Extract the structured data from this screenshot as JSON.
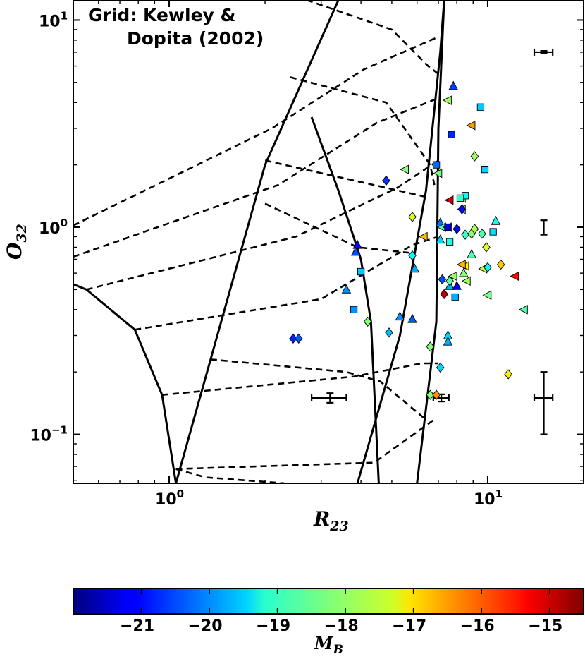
{
  "chart_data": {
    "type": "scatter",
    "title": "",
    "annotation": [
      "Grid: Kewley &",
      "Dopita (2002)"
    ],
    "xlabel": {
      "main": "R",
      "sub": "23"
    },
    "ylabel": {
      "main": "O",
      "sub": "32"
    },
    "xscale": "log",
    "yscale": "log",
    "xlim": [
      0.5,
      20
    ],
    "ylim": [
      0.058,
      12.5
    ],
    "xticks": [
      {
        "value": 1,
        "base": "10",
        "exp": "0"
      },
      {
        "value": 10,
        "base": "10",
        "exp": "1"
      }
    ],
    "yticks": [
      {
        "value": 0.1,
        "base": "10",
        "exp": "−1"
      },
      {
        "value": 1,
        "base": "10",
        "exp": "0"
      },
      {
        "value": 10,
        "base": "10",
        "exp": "1"
      }
    ],
    "grid": false,
    "colorbar": {
      "label": {
        "main": "M",
        "sub": "B"
      },
      "vmin": -22,
      "vmax": -14.5,
      "colormap": "jet",
      "ticks": [
        "−21",
        "−20",
        "−19",
        "−18",
        "−17",
        "−16",
        "−15"
      ],
      "tick_values": [
        -21,
        -20,
        -19,
        -18,
        -17,
        -16,
        -15
      ]
    },
    "model_grid": {
      "solid": [
        [
          [
            0.5,
            0.53
          ],
          [
            0.55,
            0.5
          ],
          [
            0.78,
            0.32
          ],
          [
            0.95,
            0.155
          ],
          [
            1.05,
            0.058
          ]
        ],
        [
          [
            1.05,
            0.058
          ],
          [
            2.0,
            2.0
          ],
          [
            3.4,
            12.5
          ]
        ],
        [
          [
            2.8,
            3.4
          ],
          [
            3.4,
            1.5
          ],
          [
            4.0,
            0.7
          ],
          [
            4.3,
            0.35
          ],
          [
            4.55,
            0.058
          ]
        ],
        [
          [
            3.9,
            0.058
          ],
          [
            5.3,
            0.3
          ],
          [
            6.4,
            1.5
          ],
          [
            7.1,
            7.0
          ],
          [
            7.3,
            12.5
          ]
        ],
        [
          [
            6.0,
            0.058
          ],
          [
            6.9,
            0.35
          ],
          [
            7.0,
            3.0
          ],
          [
            7.3,
            12.5
          ]
        ]
      ],
      "dashed": [
        [
          [
            0.5,
            1.02
          ],
          [
            2.1,
            3.0
          ],
          [
            4.1,
            5.8
          ],
          [
            7.0,
            8.3
          ]
        ],
        [
          [
            0.5,
            0.72
          ],
          [
            2.2,
            1.6
          ],
          [
            4.5,
            3.2
          ],
          [
            7.0,
            4.2
          ]
        ],
        [
          [
            0.55,
            0.5
          ],
          [
            2.5,
            0.9
          ],
          [
            5.2,
            1.55
          ],
          [
            7.0,
            2.1
          ]
        ],
        [
          [
            0.78,
            0.32
          ],
          [
            3.0,
            0.45
          ],
          [
            5.8,
            0.82
          ],
          [
            7.0,
            0.9
          ]
        ],
        [
          [
            0.95,
            0.155
          ],
          [
            3.8,
            0.19
          ],
          [
            6.2,
            0.22
          ],
          [
            7.0,
            0.22
          ]
        ],
        [
          [
            1.05,
            0.068
          ],
          [
            4.4,
            0.073
          ],
          [
            6.8,
            0.118
          ]
        ],
        [
          [
            2.7,
            12.5
          ],
          [
            5.0,
            9.0
          ],
          [
            6.5,
            6.0
          ],
          [
            7.0,
            5.5
          ]
        ],
        [
          [
            2.4,
            5.3
          ],
          [
            4.8,
            4.0
          ],
          [
            6.6,
            2.0
          ],
          [
            6.8,
            1.6
          ]
        ],
        [
          [
            2.0,
            2.1
          ],
          [
            4.8,
            1.55
          ],
          [
            6.4,
            1.4
          ]
        ],
        [
          [
            2.0,
            1.3
          ],
          [
            3.9,
            0.8
          ],
          [
            5.8,
            0.75
          ]
        ],
        [
          [
            1.35,
            0.23
          ],
          [
            3.6,
            0.2
          ],
          [
            4.6,
            0.18
          ],
          [
            6.3,
            0.12
          ]
        ],
        [
          [
            1.05,
            0.068
          ],
          [
            1.3,
            0.062
          ],
          [
            2.3,
            0.058
          ]
        ]
      ]
    },
    "series": [
      {
        "marker": "triangle",
        "points": [
          [
            7.8,
            4.8,
            -20.6
          ],
          [
            3.9,
            0.82,
            -21.0
          ],
          [
            3.85,
            0.76,
            -20.5
          ],
          [
            3.6,
            0.5,
            -20.0
          ],
          [
            5.3,
            0.37,
            -20.0
          ],
          [
            5.9,
            0.63,
            -19.8
          ],
          [
            5.8,
            0.36,
            -20.4
          ],
          [
            7.5,
            0.3,
            -19.5
          ],
          [
            7.5,
            0.28,
            -19.8
          ],
          [
            7.1,
            1.05,
            -20.2
          ],
          [
            7.1,
            0.87,
            -19.5
          ],
          [
            7.6,
            0.52,
            -19.8
          ],
          [
            8.0,
            0.52,
            -21.2
          ],
          [
            10.6,
            1.07,
            -19.1
          ],
          [
            8.9,
            0.74,
            -18.6
          ],
          [
            8.4,
            0.6,
            -18.2
          ]
        ]
      },
      {
        "marker": "triangle-left",
        "points": [
          [
            7.5,
            4.1,
            -18.0
          ],
          [
            8.9,
            3.1,
            -16.6
          ],
          [
            5.5,
            1.9,
            -18.2
          ],
          [
            7.0,
            1.82,
            -18.3
          ],
          [
            6.3,
            0.9,
            -16.8
          ],
          [
            7.6,
            1.35,
            -15.1
          ],
          [
            8.3,
            1.22,
            -17.8
          ],
          [
            7.2,
            1.0,
            -18.6
          ],
          [
            7.8,
            0.58,
            -18.1
          ],
          [
            12.2,
            0.58,
            -15.5
          ],
          [
            13.0,
            0.4,
            -18.6
          ],
          [
            10.0,
            0.47,
            -18.3
          ],
          [
            8.5,
            0.65,
            -17.2
          ],
          [
            8.6,
            0.55,
            -18.0
          ],
          [
            8.3,
            1.38,
            -17.6
          ],
          [
            9.7,
            0.63,
            -17.8
          ],
          [
            8.3,
            0.66,
            -16.8
          ],
          [
            7.5,
            1.0,
            -16.5
          ]
        ]
      },
      {
        "marker": "square",
        "points": [
          [
            9.5,
            3.8,
            -19.6
          ],
          [
            7.7,
            2.8,
            -20.8
          ],
          [
            6.9,
            2.0,
            -20.3
          ],
          [
            9.8,
            1.9,
            -19.5
          ],
          [
            8.5,
            1.42,
            -19.1
          ],
          [
            10.4,
            0.95,
            -19.4
          ],
          [
            4.0,
            0.61,
            -19.6
          ],
          [
            3.8,
            0.4,
            -20.0
          ],
          [
            7.6,
            0.85,
            -19.0
          ],
          [
            7.9,
            0.46,
            -19.8
          ],
          [
            7.5,
            1.0,
            -21.4
          ],
          [
            8.2,
            1.38,
            -18.8
          ]
        ]
      },
      {
        "marker": "diamond",
        "points": [
          [
            4.8,
            1.68,
            -20.7
          ],
          [
            2.45,
            0.29,
            -20.8
          ],
          [
            2.55,
            0.29,
            -20.4
          ],
          [
            5.8,
            1.12,
            -17.6
          ],
          [
            5.8,
            0.73,
            -19.2
          ],
          [
            4.2,
            0.35,
            -18.2
          ],
          [
            4.9,
            0.31,
            -19.7
          ],
          [
            6.6,
            0.265,
            -18.2
          ],
          [
            7.1,
            0.21,
            -19.5
          ],
          [
            6.6,
            0.155,
            -18.2
          ],
          [
            6.9,
            0.155,
            -16.5
          ],
          [
            7.2,
            0.56,
            -20.5
          ],
          [
            7.3,
            0.475,
            -15.0
          ],
          [
            7.6,
            0.55,
            -18.5
          ],
          [
            8.0,
            0.98,
            -21.0
          ],
          [
            8.5,
            0.92,
            -18.8
          ],
          [
            8.9,
            0.93,
            -18.2
          ],
          [
            9.1,
            0.98,
            -17.9
          ],
          [
            8.3,
            1.22,
            -21.0
          ],
          [
            9.1,
            2.2,
            -18.0
          ],
          [
            9.9,
            0.8,
            -17.5
          ],
          [
            10.0,
            0.64,
            -19.2
          ],
          [
            11.0,
            0.66,
            -16.9
          ],
          [
            11.6,
            0.195,
            -17.2
          ],
          [
            9.6,
            0.93,
            -18.6
          ]
        ]
      }
    ],
    "error_bars": [
      {
        "x": 15,
        "y": 7.0,
        "xerr": [
          14.0,
          16.0
        ],
        "yerr": [
          6.9,
          7.1
        ]
      },
      {
        "x": 15,
        "y": 1.0,
        "xerr": [
          15.0,
          15.0
        ],
        "yerr": [
          0.92,
          1.08
        ]
      },
      {
        "x": 15,
        "y": 0.15,
        "xerr": [
          14.0,
          16.0
        ],
        "yerr": [
          0.1,
          0.2
        ]
      },
      {
        "x": 3.2,
        "y": 0.15,
        "xerr": [
          2.8,
          3.6
        ],
        "yerr": [
          0.142,
          0.158
        ]
      },
      {
        "x": 7.15,
        "y": 0.15,
        "xerr": [
          6.75,
          7.55
        ],
        "yerr": [
          0.144,
          0.156
        ]
      }
    ]
  }
}
